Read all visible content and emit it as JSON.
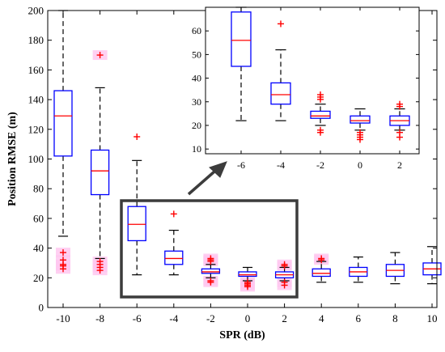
{
  "chart_data": {
    "type": "box",
    "xlabel": "SPR (dB)",
    "ylabel": "Position RMSE (m)",
    "ylim": [
      0,
      200
    ],
    "yticks": [
      0,
      20,
      40,
      60,
      80,
      100,
      120,
      140,
      160,
      180,
      200
    ],
    "categories": [
      "-10",
      "-8",
      "-6",
      "-4",
      "-2",
      "0",
      "2",
      "4",
      "6",
      "8",
      "10"
    ],
    "boxes": [
      {
        "x": "-10",
        "q1": 102,
        "median": 129,
        "q3": 146,
        "whisker_low": 48,
        "whisker_high": 200,
        "outliers": [
          37,
          32,
          29,
          28,
          26
        ]
      },
      {
        "x": "-8",
        "q1": 76,
        "median": 92,
        "q3": 106,
        "whisker_low": 33,
        "whisker_high": 148,
        "outliers": [
          170,
          31,
          29,
          27,
          25
        ]
      },
      {
        "x": "-6",
        "q1": 45,
        "median": 56,
        "q3": 68,
        "whisker_low": 22,
        "whisker_high": 99,
        "outliers": [
          115
        ]
      },
      {
        "x": "-4",
        "q1": 29,
        "median": 33,
        "q3": 38,
        "whisker_low": 22,
        "whisker_high": 52,
        "outliers": [
          63
        ]
      },
      {
        "x": "-2",
        "q1": 23,
        "median": 24,
        "q3": 26,
        "whisker_low": 20,
        "whisker_high": 29,
        "outliers": [
          31,
          32,
          33,
          18,
          17
        ]
      },
      {
        "x": "0",
        "q1": 21,
        "median": 22,
        "q3": 24,
        "whisker_low": 18,
        "whisker_high": 27,
        "outliers": [
          17,
          16,
          15,
          14
        ]
      },
      {
        "x": "2",
        "q1": 20,
        "median": 22,
        "q3": 24,
        "whisker_low": 18,
        "whisker_high": 27,
        "outliers": [
          29,
          28,
          17,
          15
        ]
      },
      {
        "x": "4",
        "q1": 21,
        "median": 23,
        "q3": 26,
        "whisker_low": 17,
        "whisker_high": 31,
        "outliers": [
          32,
          33
        ]
      },
      {
        "x": "6",
        "q1": 21,
        "median": 24,
        "q3": 27,
        "whisker_low": 17,
        "whisker_high": 34,
        "outliers": []
      },
      {
        "x": "8",
        "q1": 21,
        "median": 25,
        "q3": 29,
        "whisker_low": 16,
        "whisker_high": 37,
        "outliers": []
      },
      {
        "x": "10",
        "q1": 22,
        "median": 26,
        "q3": 30,
        "whisker_low": 16,
        "whisker_high": 41,
        "outliers": []
      }
    ],
    "inset": {
      "categories": [
        "-6",
        "-4",
        "-2",
        "0",
        "2"
      ],
      "ylim": [
        8,
        70
      ],
      "yticks": [
        10,
        20,
        30,
        40,
        50,
        60
      ]
    },
    "colors": {
      "box": "#0000ff",
      "median": "#ff0000",
      "whisker": "#000000",
      "outlier": "#ff0000",
      "outlier_highlight": "#ffc8f0",
      "zoom_frame": "#3c3c3c"
    },
    "grid": false
  }
}
